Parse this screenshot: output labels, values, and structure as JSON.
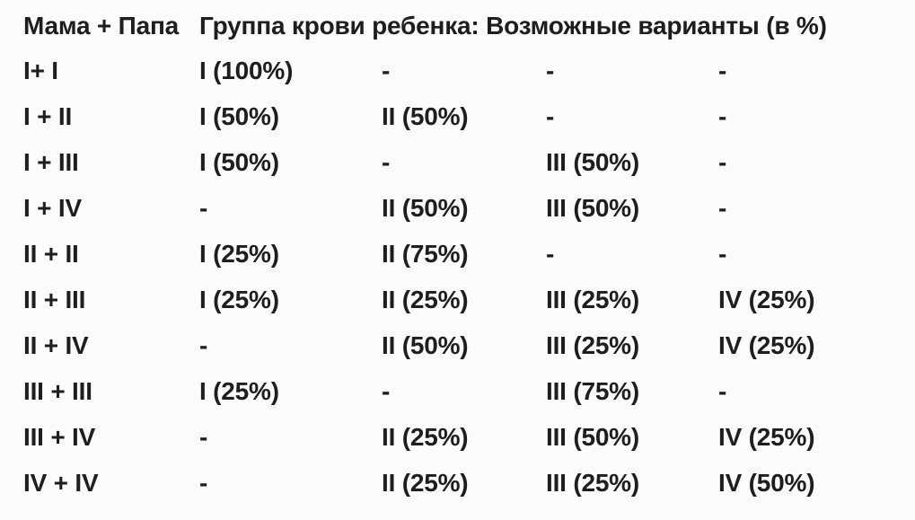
{
  "page": {
    "background_color": "#fbfbfb",
    "text_color": "#1e1e1e"
  },
  "table": {
    "header": {
      "parents_label": "Мама + Папа",
      "child_label": "Группа крови ребенка: Возможные варианты (в %)"
    },
    "rows": [
      {
        "parents": "I+ I",
        "variants": [
          "I (100%)",
          "-",
          "-",
          "-"
        ]
      },
      {
        "parents": "I + II",
        "variants": [
          "I (50%)",
          "II (50%)",
          "-",
          "-"
        ]
      },
      {
        "parents": "I + III",
        "variants": [
          "I (50%)",
          "-",
          "III (50%)",
          "-"
        ]
      },
      {
        "parents": "I + IV",
        "variants": [
          "-",
          "II (50%)",
          "III (50%)",
          "-"
        ]
      },
      {
        "parents": "II + II",
        "variants": [
          "I (25%)",
          "II (75%)",
          "-",
          "-"
        ]
      },
      {
        "parents": "II + III",
        "variants": [
          "I (25%)",
          "II (25%)",
          "III (25%)",
          "IV (25%)"
        ]
      },
      {
        "parents": "II + IV",
        "variants": [
          "-",
          "II (50%)",
          "III (25%)",
          "IV (25%)"
        ]
      },
      {
        "parents": "III + III",
        "variants": [
          "I (25%)",
          "-",
          "III (75%)",
          "-"
        ]
      },
      {
        "parents": "III + IV",
        "variants": [
          "-",
          "II (25%)",
          "III (50%)",
          "IV (25%)"
        ]
      },
      {
        "parents": "IV + IV",
        "variants": [
          "-",
          "II (25%)",
          "III (25%)",
          "IV (50%)"
        ]
      }
    ]
  }
}
